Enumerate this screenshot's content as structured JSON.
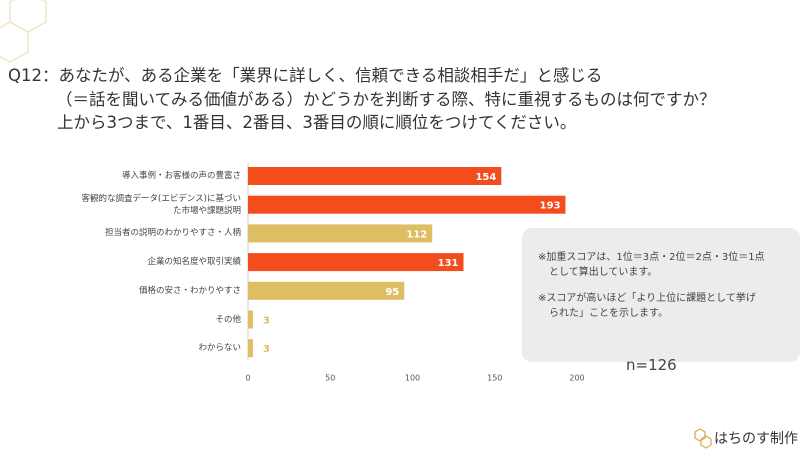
{
  "question": [
    "Q12：あなたが、ある企業を「業界に詳しく、信頼できる相談相手だ」と感じる",
    "（＝話を聞いてみる価値がある）かどうかを判断する際、特に重視するものは何ですか？",
    "上から3つまで、1番目、2番目、3番目の順に順位をつけてください。"
  ],
  "chart_data": {
    "type": "bar",
    "orientation": "horizontal",
    "categories": [
      "導入事例・お客様の声の豊富さ",
      "客観的な調査データ(エビデンス)に基づいた市場や課題説明",
      "担当者の説明のわかりやすさ・人柄",
      "企業の知名度や取引実績",
      "価格の安さ・わかりやすさ",
      "その他",
      "わからない"
    ],
    "values": [
      154,
      193,
      112,
      131,
      95,
      3,
      3
    ],
    "colors": [
      "#f34c1d",
      "#f34c1d",
      "#dfbe63",
      "#f34c1d",
      "#dfbe63",
      "#dfbe63",
      "#dfbe63"
    ],
    "xlim": [
      0,
      200
    ],
    "xticks": [
      0,
      50,
      100,
      150,
      200
    ],
    "grid": false
  },
  "notes": [
    [
      "※加重スコアは、1位＝3点・2位＝2点・3位＝1点",
      "として算出しています。"
    ],
    [
      "※スコアが高いほど「より上位に課題として挙げ",
      "られた」ことを示します。"
    ]
  ],
  "sample_size": "n=126",
  "brand": "はちのす制作"
}
